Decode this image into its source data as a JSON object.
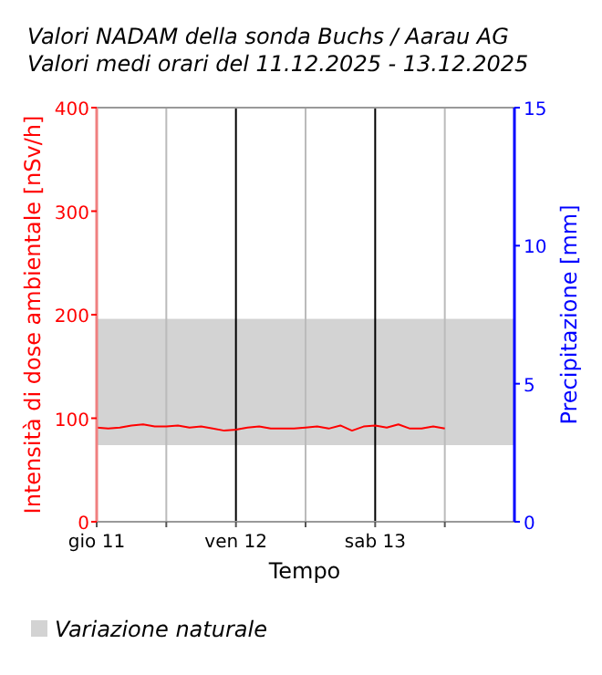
{
  "chart_data": {
    "type": "line",
    "title": "Valori NADAM della sonda Buchs / Aarau AG",
    "subtitle": "Valori medi orari del 11.12.2025 - 13.12.2025",
    "xlabel": "Tempo",
    "ylabel": "Intensità di dose ambientale [nSv/h]",
    "y2label": "Precipitazione [mm]",
    "x": [
      "2025-12-11T00:00",
      "2025-12-11T02:00",
      "2025-12-11T04:00",
      "2025-12-11T06:00",
      "2025-12-11T08:00",
      "2025-12-11T10:00",
      "2025-12-11T12:00",
      "2025-12-11T14:00",
      "2025-12-11T16:00",
      "2025-12-11T18:00",
      "2025-12-11T20:00",
      "2025-12-11T22:00",
      "2025-12-12T00:00",
      "2025-12-12T02:00",
      "2025-12-12T04:00",
      "2025-12-12T06:00",
      "2025-12-12T08:00",
      "2025-12-12T10:00",
      "2025-12-12T12:00",
      "2025-12-12T14:00",
      "2025-12-12T16:00",
      "2025-12-12T18:00",
      "2025-12-12T20:00",
      "2025-12-12T22:00",
      "2025-12-13T00:00",
      "2025-12-13T02:00",
      "2025-12-13T04:00",
      "2025-12-13T06:00",
      "2025-12-13T08:00",
      "2025-12-13T10:00",
      "2025-12-13T12:00"
    ],
    "series": [
      {
        "color": "#ff0000",
        "values": [
          91,
          90,
          91,
          93,
          94,
          92,
          92,
          93,
          91,
          92,
          90,
          88,
          89,
          91,
          92,
          90,
          90,
          90,
          91,
          92,
          90,
          93,
          88,
          92,
          93,
          91,
          94,
          90,
          90,
          92,
          90
        ]
      }
    ],
    "xlim": [
      "2025-12-11T00:00",
      "2025-12-14T00:00"
    ],
    "xticks": [
      {
        "value": "2025-12-11T00:00",
        "label": "gio 11"
      },
      {
        "value": "2025-12-11T12:00",
        "label": null
      },
      {
        "value": "2025-12-12T00:00",
        "label": "ven 12"
      },
      {
        "value": "2025-12-12T12:00",
        "label": null
      },
      {
        "value": "2025-12-13T00:00",
        "label": "sab 13"
      },
      {
        "value": "2025-12-13T12:00",
        "label": null
      }
    ],
    "ylim": [
      0,
      400
    ],
    "yticks": [
      0,
      100,
      200,
      300,
      400
    ],
    "y2lim": [
      0,
      15
    ],
    "y2ticks": [
      0,
      5,
      10,
      15
    ],
    "bands": [
      {
        "axis": "y",
        "from": 74,
        "to": 196,
        "label": "Variazione naturale",
        "color": "#d3d3d3"
      }
    ],
    "grid": "x",
    "legend": "bottom left",
    "marker": "none",
    "line_style": "solid"
  }
}
